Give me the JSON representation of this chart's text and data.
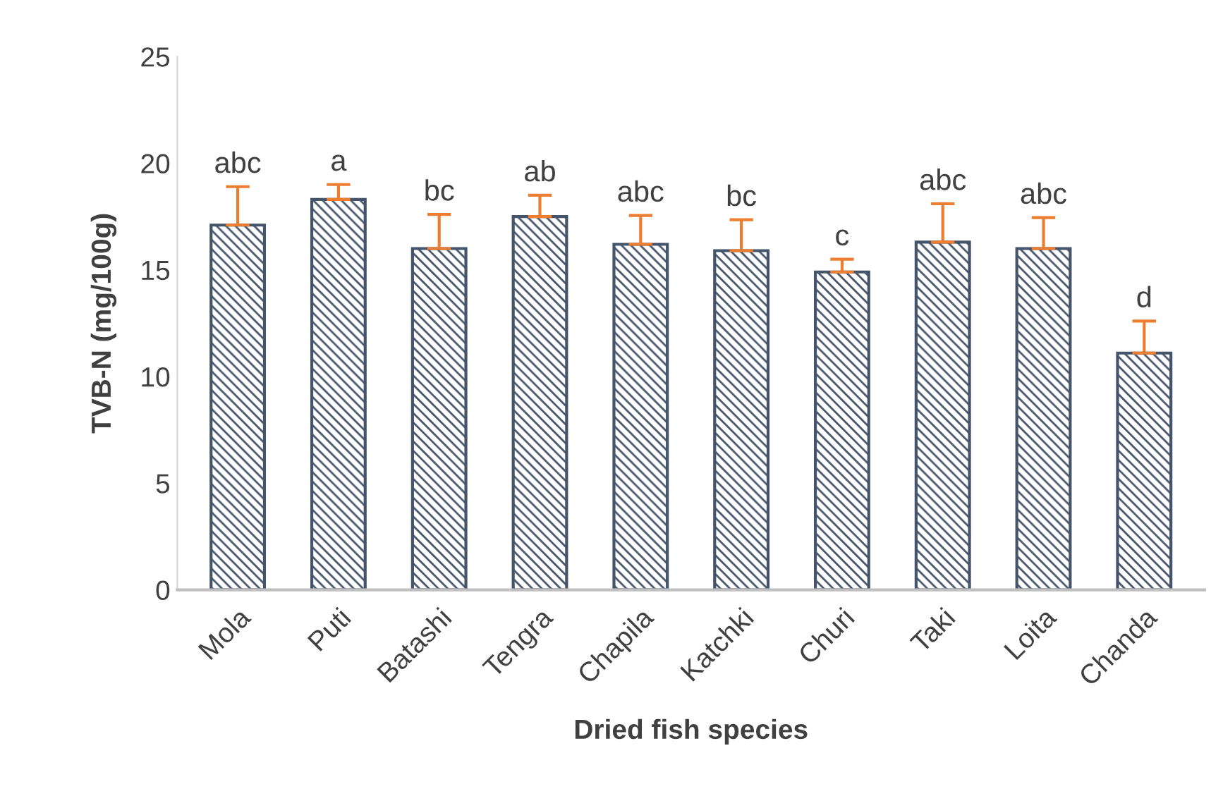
{
  "chart_data": {
    "type": "bar",
    "xlabel": "Dried fish species",
    "ylabel": "TVB-N (mg/100g)",
    "categories": [
      "Mola",
      "Puti",
      "Batashi",
      "Tengra",
      "Chapila",
      "Katchki",
      "Churi",
      "Taki",
      "Loita",
      "Chanda"
    ],
    "values": [
      17.1,
      18.3,
      16.0,
      17.5,
      16.2,
      15.9,
      14.9,
      16.3,
      16.0,
      11.1
    ],
    "errors": [
      [
        17.1,
        18.9
      ],
      [
        18.3,
        19.0
      ],
      [
        16.0,
        17.6
      ],
      [
        17.5,
        18.5
      ],
      [
        16.2,
        17.55
      ],
      [
        15.9,
        17.35
      ],
      [
        14.9,
        15.5
      ],
      [
        16.3,
        18.1
      ],
      [
        16.0,
        17.45
      ],
      [
        11.1,
        12.6
      ]
    ],
    "color": "#44546a",
    "ylim": [
      0,
      25
    ],
    "yticks": [
      0,
      5,
      10,
      15,
      20,
      25
    ],
    "grid": false,
    "annotations": [
      "abc",
      "a",
      "bc",
      "ab",
      "abc",
      "bc",
      "c",
      "abc",
      "abc",
      "d"
    ]
  }
}
